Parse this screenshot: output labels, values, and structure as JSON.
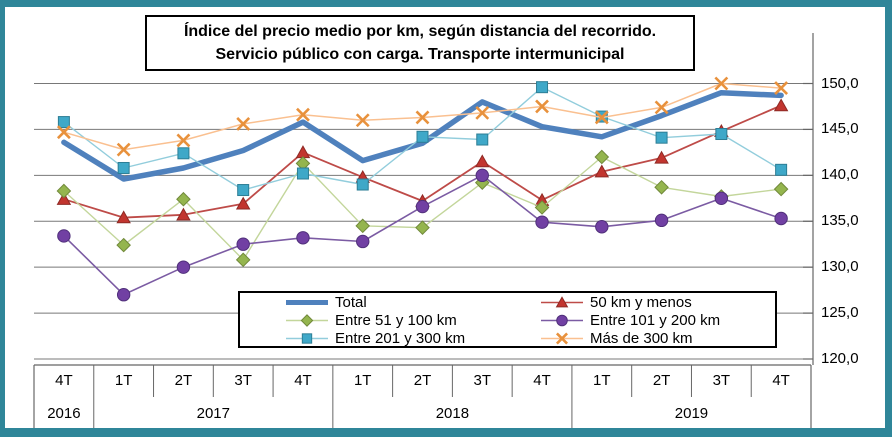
{
  "title": {
    "line1": "Índice del precio medio por km, según distancia del recorrido.",
    "line2": "Servicio público con carga. Transporte intermunicipal"
  },
  "frame_border_color": "#2F8699",
  "chart_data": {
    "type": "line",
    "title": "Índice del precio medio por km, según distancia del recorrido. Servicio público con carga. Transporte intermunicipal",
    "xlabel": "",
    "ylabel": "",
    "ylim": [
      120,
      150
    ],
    "grid": true,
    "legend_position": "inside-bottom",
    "y_ticks": [
      {
        "value": 150,
        "label": "150,0"
      },
      {
        "value": 145,
        "label": "145,0"
      },
      {
        "value": 140,
        "label": "140,0"
      },
      {
        "value": 135,
        "label": "135,0"
      },
      {
        "value": 130,
        "label": "130,0"
      },
      {
        "value": 125,
        "label": "125,0"
      },
      {
        "value": 120,
        "label": "120,0"
      }
    ],
    "categories": [
      "4T",
      "1T",
      "2T",
      "3T",
      "4T",
      "1T",
      "2T",
      "3T",
      "4T",
      "1T",
      "2T",
      "3T",
      "4T"
    ],
    "year_groups": [
      {
        "label": "2016",
        "quarters": 1
      },
      {
        "label": "2017",
        "quarters": 4
      },
      {
        "label": "2018",
        "quarters": 4
      },
      {
        "label": "2019",
        "quarters": 4
      }
    ],
    "series": [
      {
        "name": "Total",
        "marker": "none",
        "color": "#4F81BD",
        "line_width": 5.5,
        "values": [
          143.6,
          139.6,
          140.8,
          142.7,
          145.8,
          141.6,
          143.5,
          148.0,
          145.3,
          144.2,
          146.5,
          149.0,
          148.7
        ]
      },
      {
        "name": "50 km y menos",
        "marker": "triangle",
        "color": "#BE4B48",
        "marker_fill": "#C2352F",
        "marker_edge": "#8E2A25",
        "line_width": 1.8,
        "values": [
          137.4,
          135.4,
          135.7,
          136.9,
          142.5,
          139.8,
          137.2,
          141.5,
          137.3,
          140.4,
          141.9,
          144.8,
          147.6
        ]
      },
      {
        "name": "Entre 51 y 100 km",
        "marker": "diamond",
        "color": "#C3D69B",
        "marker_fill": "#94B54E",
        "marker_edge": "#71893B",
        "line_width": 1.4,
        "values": [
          138.3,
          132.4,
          137.4,
          130.8,
          141.3,
          134.5,
          134.3,
          139.2,
          136.5,
          142.0,
          138.7,
          137.7,
          138.5
        ]
      },
      {
        "name": "Entre 101 y 200 km",
        "marker": "circle",
        "color": "#7B5BA3",
        "marker_fill": "#7140A3",
        "marker_edge": "#50307A",
        "line_width": 1.6,
        "values": [
          133.4,
          127.0,
          130.0,
          132.5,
          133.2,
          132.8,
          136.6,
          140.0,
          134.9,
          134.4,
          135.1,
          137.5,
          135.3
        ]
      },
      {
        "name": "Entre 201 y 300 km",
        "marker": "square",
        "color": "#92CDDC",
        "marker_fill": "#3FA8C8",
        "marker_edge": "#2D7E95",
        "line_width": 1.4,
        "values": [
          145.8,
          140.8,
          142.4,
          138.4,
          140.2,
          139.0,
          144.2,
          143.9,
          149.6,
          146.4,
          144.1,
          144.5,
          140.6
        ]
      },
      {
        "name": "Más de 300 km",
        "marker": "x",
        "color": "#FAC090",
        "marker_fill": "none",
        "marker_edge": "#E8913C",
        "line_width": 1.5,
        "values": [
          144.7,
          142.8,
          143.8,
          145.6,
          146.6,
          146.0,
          146.3,
          146.8,
          147.5,
          146.3,
          147.4,
          150.0,
          149.5
        ]
      }
    ]
  }
}
